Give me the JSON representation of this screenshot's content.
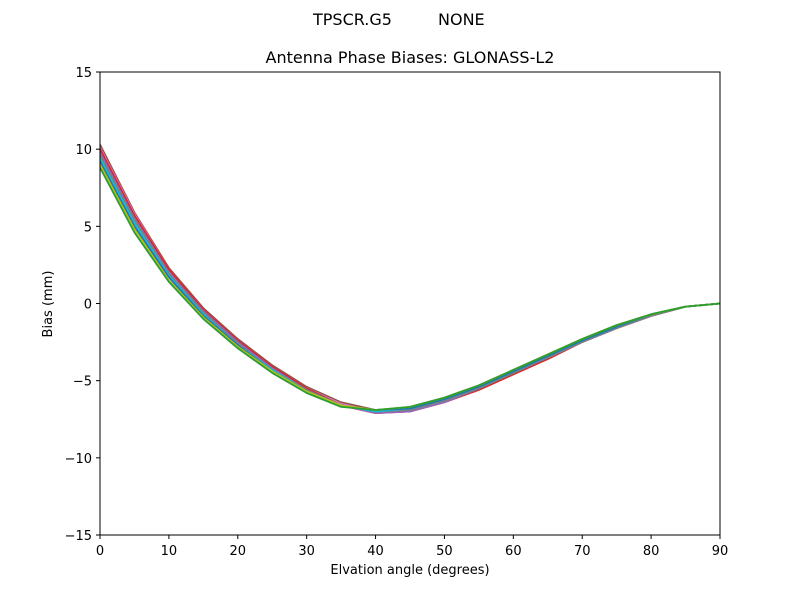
{
  "header": {
    "antenna": "TPSCR.G5",
    "radome": "NONE"
  },
  "chart_data": {
    "type": "line",
    "title": "Antenna Phase Biases: GLONASS-L2",
    "xlabel": "Elvation angle (degrees)",
    "ylabel": "Bias (mm)",
    "xlim": [
      0,
      90
    ],
    "ylim": [
      -15,
      15
    ],
    "xticks": [
      0,
      10,
      20,
      30,
      40,
      50,
      60,
      70,
      80,
      90
    ],
    "yticks": [
      -15,
      -10,
      -5,
      0,
      5,
      10,
      15
    ],
    "ytick_labels": [
      "−15",
      "−10",
      "−5",
      "0",
      "5",
      "10",
      "15"
    ],
    "grid": false,
    "legend": "none",
    "x": [
      0,
      5,
      10,
      15,
      20,
      25,
      30,
      35,
      40,
      45,
      50,
      55,
      60,
      65,
      70,
      75,
      80,
      85,
      90
    ],
    "series": [
      {
        "color": "#8c564b",
        "values": [
          10.3,
          5.9,
          2.3,
          -0.3,
          -2.3,
          -4.0,
          -5.4,
          -6.4,
          -6.9,
          -6.8,
          -6.2,
          -5.4,
          -4.4,
          -3.4,
          -2.4,
          -1.5,
          -0.7,
          -0.2,
          0.0
        ]
      },
      {
        "color": "#e377c2",
        "values": [
          10.1,
          5.8,
          2.2,
          -0.4,
          -2.4,
          -4.1,
          -5.5,
          -6.5,
          -7.0,
          -6.9,
          -6.3,
          -5.5,
          -4.5,
          -3.5,
          -2.5,
          -1.6,
          -0.8,
          -0.2,
          0.0
        ]
      },
      {
        "color": "#d62728",
        "values": [
          10.0,
          5.7,
          2.2,
          -0.4,
          -2.4,
          -4.1,
          -5.5,
          -6.6,
          -7.1,
          -7.0,
          -6.4,
          -5.6,
          -4.6,
          -3.6,
          -2.5,
          -1.6,
          -0.8,
          -0.2,
          0.0
        ]
      },
      {
        "color": "#9467bd",
        "values": [
          9.8,
          5.5,
          2.0,
          -0.5,
          -2.5,
          -4.2,
          -5.6,
          -6.6,
          -7.1,
          -7.0,
          -6.4,
          -5.5,
          -4.5,
          -3.5,
          -2.5,
          -1.6,
          -0.8,
          -0.2,
          0.0
        ]
      },
      {
        "color": "#7f7f7f",
        "values": [
          9.6,
          5.4,
          1.9,
          -0.6,
          -2.6,
          -4.3,
          -5.6,
          -6.6,
          -7.0,
          -6.9,
          -6.3,
          -5.5,
          -4.5,
          -3.5,
          -2.5,
          -1.6,
          -0.8,
          -0.2,
          0.0
        ]
      },
      {
        "color": "#17becf",
        "values": [
          9.4,
          5.2,
          1.8,
          -0.7,
          -2.7,
          -4.3,
          -5.7,
          -6.6,
          -7.0,
          -6.8,
          -6.2,
          -5.4,
          -4.4,
          -3.4,
          -2.4,
          -1.5,
          -0.7,
          -0.2,
          0.0
        ]
      },
      {
        "color": "#1f77b4",
        "values": [
          9.2,
          5.0,
          1.7,
          -0.8,
          -2.7,
          -4.4,
          -5.7,
          -6.6,
          -6.9,
          -6.8,
          -6.2,
          -5.4,
          -4.4,
          -3.4,
          -2.4,
          -1.5,
          -0.7,
          -0.2,
          0.0
        ]
      },
      {
        "color": "#bcbd22",
        "values": [
          9.0,
          4.8,
          1.5,
          -0.9,
          -2.8,
          -4.4,
          -5.7,
          -6.6,
          -6.9,
          -6.7,
          -6.1,
          -5.3,
          -4.3,
          -3.3,
          -2.3,
          -1.4,
          -0.7,
          -0.2,
          0.0
        ]
      },
      {
        "color": "#2ca02c",
        "values": [
          8.8,
          4.6,
          1.4,
          -1.0,
          -2.9,
          -4.5,
          -5.8,
          -6.7,
          -6.9,
          -6.7,
          -6.1,
          -5.3,
          -4.3,
          -3.3,
          -2.3,
          -1.4,
          -0.7,
          -0.2,
          0.0
        ]
      }
    ]
  }
}
